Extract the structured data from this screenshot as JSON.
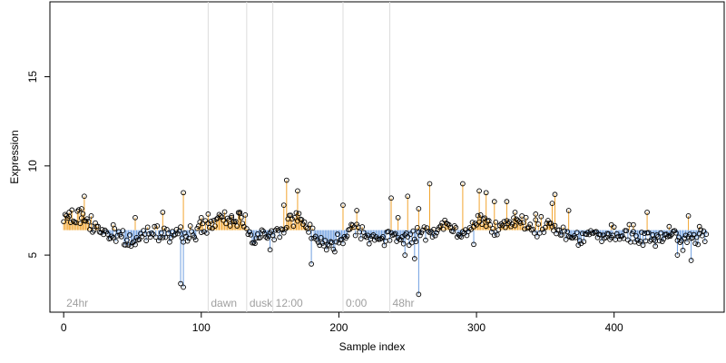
{
  "chart_data": {
    "type": "scatter",
    "title": "",
    "xlabel": "Sample index",
    "ylabel": "Expression",
    "xlim": [
      -10,
      480
    ],
    "ylim": [
      1.8,
      19.2
    ],
    "xticks": [
      0,
      100,
      200,
      300,
      400
    ],
    "yticks": [
      5,
      10,
      15
    ],
    "baseline": 6.4,
    "colors": {
      "above": "#f2a530",
      "below": "#6f9fe0",
      "point_stroke": "#000000",
      "region_line": "#dcdcdc",
      "region_text": "#a0a0a0"
    },
    "regions": [
      {
        "label": "24hr",
        "x": 0,
        "line": false
      },
      {
        "label": "dawn",
        "x": 105,
        "line": true
      },
      {
        "label": "dusk",
        "x": 133,
        "line": true
      },
      {
        "label": "12:00",
        "x": 152,
        "line": true
      },
      {
        "label": "0:00",
        "x": 203,
        "line": true
      },
      {
        "label": "48hr",
        "x": 237,
        "line": true
      }
    ],
    "anchors": [
      [
        0,
        6.9
      ],
      [
        4,
        7.2
      ],
      [
        8,
        7.0
      ],
      [
        12,
        7.2
      ],
      [
        16,
        7.0
      ],
      [
        20,
        6.6
      ],
      [
        26,
        6.5
      ],
      [
        32,
        6.2
      ],
      [
        36,
        6.0
      ],
      [
        40,
        6.0
      ],
      [
        44,
        5.9
      ],
      [
        48,
        5.7
      ],
      [
        52,
        5.7
      ],
      [
        56,
        6.0
      ],
      [
        60,
        6.3
      ],
      [
        64,
        6.3
      ],
      [
        68,
        6.5
      ],
      [
        72,
        6.2
      ],
      [
        76,
        6.2
      ],
      [
        80,
        6.1
      ],
      [
        84,
        6.0
      ],
      [
        88,
        6.1
      ],
      [
        92,
        6.2
      ],
      [
        96,
        6.3
      ],
      [
        100,
        6.5
      ],
      [
        104,
        6.6
      ],
      [
        108,
        6.8
      ],
      [
        112,
        6.9
      ],
      [
        116,
        7.0
      ],
      [
        120,
        6.9
      ],
      [
        124,
        7.0
      ],
      [
        128,
        7.1
      ],
      [
        132,
        6.9
      ],
      [
        134,
        6.4
      ],
      [
        136,
        6.2
      ],
      [
        140,
        6.0
      ],
      [
        144,
        6.1
      ],
      [
        148,
        6.0
      ],
      [
        152,
        6.1
      ],
      [
        156,
        6.3
      ],
      [
        160,
        6.6
      ],
      [
        164,
        7.0
      ],
      [
        168,
        7.1
      ],
      [
        172,
        7.0
      ],
      [
        176,
        6.7
      ],
      [
        180,
        6.4
      ],
      [
        184,
        6.0
      ],
      [
        188,
        5.7
      ],
      [
        192,
        5.5
      ],
      [
        196,
        5.5
      ],
      [
        200,
        5.8
      ],
      [
        204,
        6.2
      ],
      [
        208,
        6.5
      ],
      [
        212,
        6.6
      ],
      [
        216,
        6.4
      ],
      [
        220,
        6.2
      ],
      [
        224,
        6.0
      ],
      [
        228,
        5.9
      ],
      [
        232,
        5.8
      ],
      [
        236,
        5.9
      ],
      [
        240,
        6.0
      ],
      [
        244,
        6.0
      ],
      [
        248,
        6.1
      ],
      [
        252,
        6.0
      ],
      [
        256,
        6.0
      ],
      [
        260,
        6.2
      ],
      [
        264,
        6.3
      ],
      [
        268,
        6.4
      ],
      [
        272,
        6.5
      ],
      [
        276,
        6.6
      ],
      [
        280,
        6.7
      ],
      [
        284,
        6.3
      ],
      [
        288,
        6.0
      ],
      [
        292,
        6.2
      ],
      [
        296,
        6.5
      ],
      [
        300,
        6.9
      ],
      [
        304,
        7.0
      ],
      [
        308,
        6.9
      ],
      [
        312,
        6.7
      ],
      [
        316,
        6.6
      ],
      [
        320,
        6.5
      ],
      [
        324,
        6.6
      ],
      [
        328,
        6.8
      ],
      [
        332,
        6.9
      ],
      [
        336,
        6.8
      ],
      [
        340,
        6.6
      ],
      [
        344,
        6.5
      ],
      [
        348,
        6.6
      ],
      [
        352,
        6.7
      ],
      [
        356,
        6.7
      ],
      [
        360,
        6.4
      ],
      [
        364,
        6.2
      ],
      [
        368,
        6.1
      ],
      [
        372,
        6.0
      ],
      [
        376,
        6.1
      ],
      [
        380,
        6.2
      ],
      [
        384,
        6.2
      ],
      [
        388,
        6.1
      ],
      [
        392,
        6.0
      ],
      [
        396,
        6.0
      ],
      [
        400,
        6.0
      ],
      [
        404,
        6.0
      ],
      [
        408,
        6.1
      ],
      [
        412,
        6.1
      ],
      [
        416,
        6.0
      ],
      [
        420,
        5.9
      ],
      [
        424,
        5.9
      ],
      [
        428,
        5.9
      ],
      [
        432,
        6.1
      ],
      [
        436,
        6.0
      ],
      [
        440,
        6.0
      ],
      [
        444,
        5.9
      ],
      [
        448,
        5.8
      ],
      [
        452,
        5.8
      ],
      [
        456,
        5.9
      ],
      [
        460,
        6.0
      ],
      [
        464,
        6.1
      ]
    ],
    "spikes": [
      [
        4,
        7.4
      ],
      [
        13,
        7.6
      ],
      [
        15,
        8.3
      ],
      [
        20,
        7.2
      ],
      [
        36,
        6.7
      ],
      [
        52,
        7.1
      ],
      [
        72,
        7.4
      ],
      [
        85,
        3.4
      ],
      [
        87,
        8.5
      ],
      [
        87,
        3.2
      ],
      [
        100,
        7.1
      ],
      [
        105,
        7.3
      ],
      [
        122,
        7.2
      ],
      [
        128,
        7.4
      ],
      [
        150,
        5.3
      ],
      [
        160,
        7.8
      ],
      [
        162,
        9.2
      ],
      [
        170,
        8.6
      ],
      [
        180,
        4.5
      ],
      [
        203,
        7.8
      ],
      [
        213,
        7.5
      ],
      [
        238,
        8.2
      ],
      [
        243,
        7.1
      ],
      [
        248,
        5.0
      ],
      [
        250,
        8.3
      ],
      [
        255,
        4.8
      ],
      [
        258,
        7.6
      ],
      [
        258,
        2.8
      ],
      [
        266,
        9.0
      ],
      [
        290,
        9.0
      ],
      [
        298,
        5.6
      ],
      [
        302,
        8.6
      ],
      [
        307,
        8.5
      ],
      [
        313,
        8.0
      ],
      [
        322,
        8.0
      ],
      [
        328,
        7.4
      ],
      [
        343,
        7.3
      ],
      [
        355,
        7.9
      ],
      [
        357,
        8.4
      ],
      [
        367,
        7.5
      ],
      [
        398,
        6.7
      ],
      [
        414,
        6.7
      ],
      [
        424,
        7.4
      ],
      [
        430,
        5.5
      ],
      [
        440,
        6.6
      ],
      [
        446,
        5.0
      ],
      [
        454,
        7.2
      ],
      [
        456,
        4.7
      ],
      [
        462,
        6.6
      ]
    ],
    "noise": {
      "count": 468,
      "amplitude": 0.22,
      "x_spacing": 1.0,
      "seed": 7
    }
  }
}
